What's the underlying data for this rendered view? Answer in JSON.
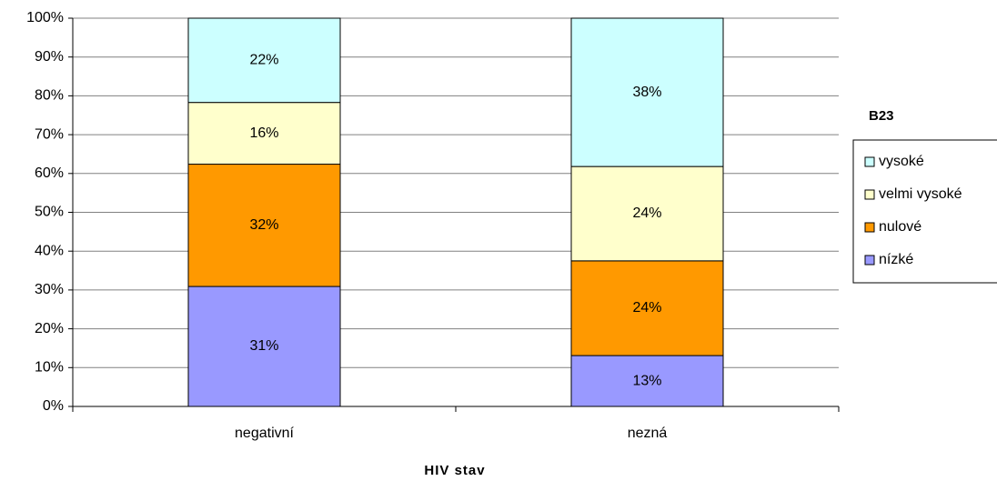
{
  "chart_data": {
    "type": "stacked_bar",
    "categories": [
      "negativní",
      "nezná"
    ],
    "series": [
      {
        "name": "nízké",
        "color": "#9999ff",
        "values": [
          30.9,
          13.1
        ],
        "value_labels": [
          "31%",
          "13%"
        ]
      },
      {
        "name": "nulové",
        "color": "#ff9900",
        "values": [
          31.5,
          24.4
        ],
        "value_labels": [
          "32%",
          "24%"
        ]
      },
      {
        "name": "velmi vysoké",
        "color": "#ffffcc",
        "values": [
          15.9,
          24.3
        ],
        "value_labels": [
          "16%",
          "24%"
        ]
      },
      {
        "name": "vysoké",
        "color": "#ccffff",
        "values": [
          21.7,
          38.2
        ],
        "value_labels": [
          "22%",
          "38%"
        ]
      }
    ],
    "ylim": [
      0,
      100
    ],
    "yticks": [
      {
        "value": 0,
        "label": "0%"
      },
      {
        "value": 10,
        "label": "10%"
      },
      {
        "value": 20,
        "label": "20%"
      },
      {
        "value": 30,
        "label": "30%"
      },
      {
        "value": 40,
        "label": "40%"
      },
      {
        "value": 50,
        "label": "50%"
      },
      {
        "value": 60,
        "label": "60%"
      },
      {
        "value": 70,
        "label": "70%"
      },
      {
        "value": 80,
        "label": "80%"
      },
      {
        "value": 90,
        "label": "90%"
      },
      {
        "value": 100,
        "label": "100%"
      }
    ],
    "grid": true,
    "xlabel": "HIV stav",
    "legend_title": "B23",
    "legend": "right"
  }
}
